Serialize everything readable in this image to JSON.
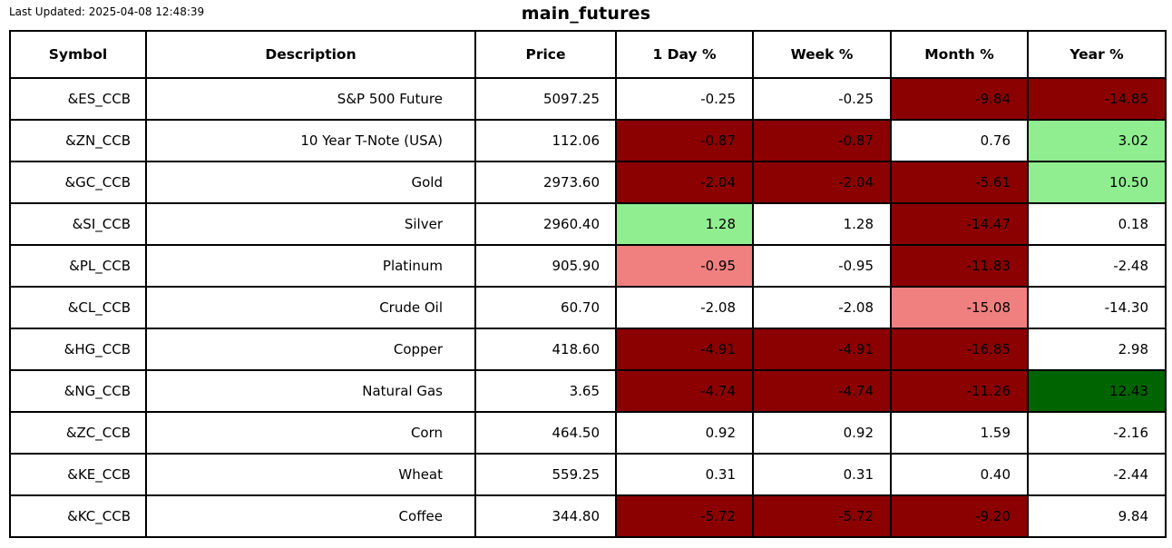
{
  "header": {
    "last_updated": "Last Updated: 2025-04-08 12:48:39",
    "title": "main_futures"
  },
  "colors": {
    "none": "#FFFFFF",
    "strong_down": "#8B0000",
    "mild_down": "#F08080",
    "mild_up": "#90EE90",
    "strong_up": "#006400"
  },
  "chart_data": {
    "type": "table",
    "title": "main_futures",
    "columns": [
      "Symbol",
      "Description",
      "Price",
      "1 Day %",
      "Week %",
      "Month %",
      "Year %"
    ],
    "rows": [
      {
        "cells": [
          "&ES_CCB",
          "S&P 500 Future",
          "5097.25",
          "-0.25",
          "-0.25",
          "-9.84",
          "-14.85"
        ],
        "bg": [
          "none",
          "none",
          "none",
          "none",
          "none",
          "strong_down",
          "strong_down"
        ]
      },
      {
        "cells": [
          "&ZN_CCB",
          "10 Year T-Note (USA)",
          "112.06",
          "-0.87",
          "-0.87",
          "0.76",
          "3.02"
        ],
        "bg": [
          "none",
          "none",
          "none",
          "strong_down",
          "strong_down",
          "none",
          "mild_up"
        ]
      },
      {
        "cells": [
          "&GC_CCB",
          "Gold",
          "2973.60",
          "-2.04",
          "-2.04",
          "-5.61",
          "10.50"
        ],
        "bg": [
          "none",
          "none",
          "none",
          "strong_down",
          "strong_down",
          "strong_down",
          "mild_up"
        ]
      },
      {
        "cells": [
          "&SI_CCB",
          "Silver",
          "2960.40",
          "1.28",
          "1.28",
          "-14.47",
          "0.18"
        ],
        "bg": [
          "none",
          "none",
          "none",
          "mild_up",
          "none",
          "strong_down",
          "none"
        ]
      },
      {
        "cells": [
          "&PL_CCB",
          "Platinum",
          "905.90",
          "-0.95",
          "-0.95",
          "-11.83",
          "-2.48"
        ],
        "bg": [
          "none",
          "none",
          "none",
          "mild_down",
          "none",
          "strong_down",
          "none"
        ]
      },
      {
        "cells": [
          "&CL_CCB",
          "Crude Oil",
          "60.70",
          "-2.08",
          "-2.08",
          "-15.08",
          "-14.30"
        ],
        "bg": [
          "none",
          "none",
          "none",
          "none",
          "none",
          "mild_down",
          "none"
        ]
      },
      {
        "cells": [
          "&HG_CCB",
          "Copper",
          "418.60",
          "-4.91",
          "-4.91",
          "-16.85",
          "2.98"
        ],
        "bg": [
          "none",
          "none",
          "none",
          "strong_down",
          "strong_down",
          "strong_down",
          "none"
        ]
      },
      {
        "cells": [
          "&NG_CCB",
          "Natural Gas",
          "3.65",
          "-4.74",
          "-4.74",
          "-11.26",
          "12.43"
        ],
        "bg": [
          "none",
          "none",
          "none",
          "strong_down",
          "strong_down",
          "strong_down",
          "strong_up"
        ]
      },
      {
        "cells": [
          "&ZC_CCB",
          "Corn",
          "464.50",
          "0.92",
          "0.92",
          "1.59",
          "-2.16"
        ],
        "bg": [
          "none",
          "none",
          "none",
          "none",
          "none",
          "none",
          "none"
        ]
      },
      {
        "cells": [
          "&KE_CCB",
          "Wheat",
          "559.25",
          "0.31",
          "0.31",
          "0.40",
          "-2.44"
        ],
        "bg": [
          "none",
          "none",
          "none",
          "none",
          "none",
          "none",
          "none"
        ]
      },
      {
        "cells": [
          "&KC_CCB",
          "Coffee",
          "344.80",
          "-5.72",
          "-5.72",
          "-9.20",
          "9.84"
        ],
        "bg": [
          "none",
          "none",
          "none",
          "strong_down",
          "strong_down",
          "strong_down",
          "none"
        ]
      }
    ]
  }
}
